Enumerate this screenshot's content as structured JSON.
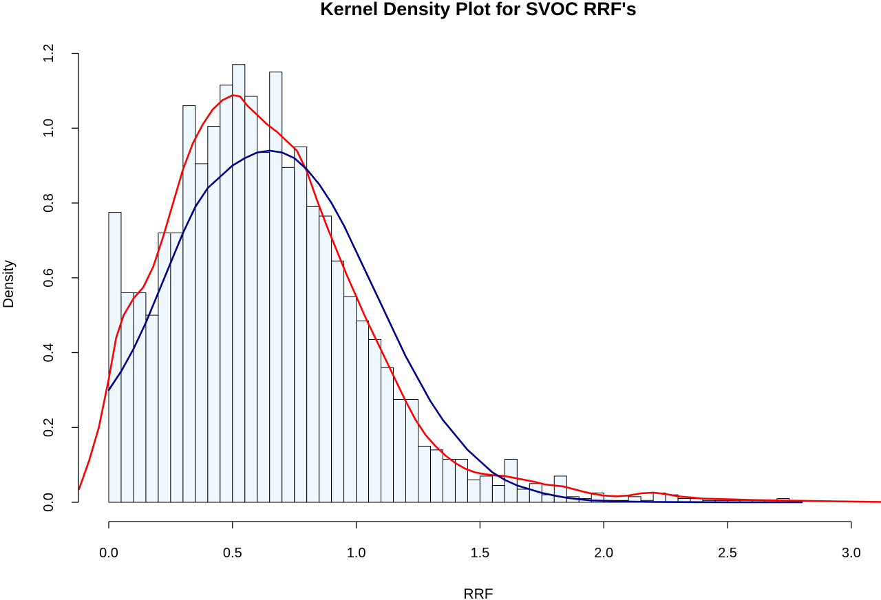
{
  "chart_data": {
    "type": "histogram",
    "title": "Kernel Density Plot for SVOC RRF's",
    "xlabel": "RRF",
    "ylabel": "Density",
    "xlim": [
      -0.12,
      3.12
    ],
    "ylim": [
      0,
      1.2
    ],
    "x_ticks": [
      "0.0",
      "0.5",
      "1.0",
      "1.5",
      "2.0",
      "2.5",
      "3.0"
    ],
    "y_ticks": [
      "0.0",
      "0.2",
      "0.4",
      "0.6",
      "0.8",
      "1.0",
      "1.2"
    ],
    "grid": false,
    "legend": "none",
    "bin_start": 0.0,
    "bin_width": 0.05,
    "densities": [
      0.775,
      0.56,
      0.56,
      0.5,
      0.72,
      0.72,
      1.06,
      0.905,
      1.005,
      1.115,
      1.17,
      1.085,
      0.935,
      1.15,
      0.895,
      0.95,
      0.79,
      0.765,
      0.645,
      0.55,
      0.485,
      0.435,
      0.36,
      0.275,
      0.275,
      0.15,
      0.14,
      0.115,
      0.115,
      0.06,
      0.07,
      0.045,
      0.115,
      0.035,
      0.05,
      0.02,
      0.07,
      0.015,
      0.01,
      0.025,
      0.005,
      0.005,
      0.015,
      0.005,
      0.025,
      0.02,
      0.01,
      0.01,
      0.005,
      0.005,
      0.005,
      0.005,
      0.005,
      0.005,
      0.01,
      0.0,
      0.0
    ],
    "series": [
      {
        "color": "#ff0000",
        "x": [
          -0.12,
          -0.08,
          -0.04,
          0.0,
          0.03,
          0.06,
          0.1,
          0.14,
          0.18,
          0.22,
          0.26,
          0.3,
          0.34,
          0.38,
          0.42,
          0.46,
          0.5,
          0.53,
          0.56,
          0.6,
          0.64,
          0.68,
          0.72,
          0.76,
          0.8,
          0.84,
          0.88,
          0.92,
          0.96,
          1.0,
          1.04,
          1.08,
          1.12,
          1.16,
          1.2,
          1.24,
          1.28,
          1.32,
          1.36,
          1.4,
          1.44,
          1.48,
          1.52,
          1.56,
          1.6,
          1.64,
          1.68,
          1.72,
          1.76,
          1.8,
          1.84,
          1.88,
          1.92,
          1.96,
          2.0,
          2.05,
          2.1,
          2.15,
          2.2,
          2.25,
          2.3,
          2.4,
          2.5,
          2.6,
          2.7,
          2.8,
          2.9,
          3.0,
          3.12
        ],
        "y": [
          0.035,
          0.11,
          0.2,
          0.33,
          0.44,
          0.5,
          0.545,
          0.575,
          0.63,
          0.71,
          0.8,
          0.89,
          0.96,
          1.01,
          1.05,
          1.075,
          1.088,
          1.085,
          1.06,
          1.035,
          1.01,
          0.99,
          0.965,
          0.94,
          0.885,
          0.81,
          0.74,
          0.675,
          0.61,
          0.55,
          0.49,
          0.435,
          0.38,
          0.325,
          0.27,
          0.22,
          0.18,
          0.15,
          0.125,
          0.105,
          0.09,
          0.08,
          0.075,
          0.072,
          0.07,
          0.065,
          0.06,
          0.055,
          0.048,
          0.045,
          0.042,
          0.035,
          0.028,
          0.022,
          0.018,
          0.016,
          0.018,
          0.024,
          0.026,
          0.022,
          0.016,
          0.01,
          0.008,
          0.006,
          0.005,
          0.004,
          0.003,
          0.002,
          0.001
        ]
      },
      {
        "color": "#00008b",
        "x": [
          0.0,
          0.05,
          0.1,
          0.15,
          0.2,
          0.25,
          0.3,
          0.35,
          0.4,
          0.45,
          0.5,
          0.55,
          0.6,
          0.65,
          0.7,
          0.75,
          0.8,
          0.85,
          0.9,
          0.95,
          1.0,
          1.05,
          1.1,
          1.15,
          1.2,
          1.25,
          1.3,
          1.35,
          1.4,
          1.45,
          1.5,
          1.55,
          1.6,
          1.65,
          1.7,
          1.75,
          1.8,
          1.85,
          1.9,
          1.95,
          2.0,
          2.1,
          2.2,
          2.3,
          2.4,
          2.5,
          2.6,
          2.7,
          2.8
        ],
        "y": [
          0.3,
          0.35,
          0.41,
          0.48,
          0.56,
          0.64,
          0.72,
          0.79,
          0.84,
          0.87,
          0.9,
          0.92,
          0.935,
          0.94,
          0.935,
          0.92,
          0.89,
          0.85,
          0.8,
          0.74,
          0.67,
          0.6,
          0.53,
          0.46,
          0.39,
          0.33,
          0.27,
          0.22,
          0.18,
          0.14,
          0.11,
          0.08,
          0.06,
          0.045,
          0.035,
          0.025,
          0.018,
          0.012,
          0.008,
          0.005,
          0.004,
          0.002,
          0.001,
          0.0005,
          0.0003,
          0.0002,
          0.0001,
          0.0,
          0.0
        ]
      }
    ]
  }
}
